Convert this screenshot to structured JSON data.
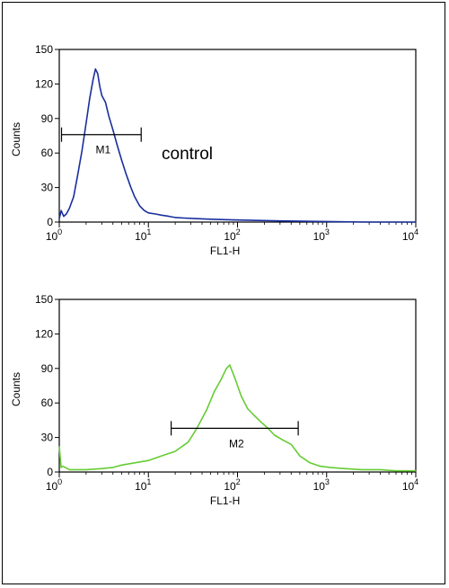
{
  "chart_data": [
    {
      "type": "line",
      "panel": "top",
      "xlabel": "FL1-H",
      "ylabel": "Counts",
      "x_scale": "log",
      "xlim": [
        1,
        10000
      ],
      "ylim": [
        0,
        150
      ],
      "y_ticks": [
        "0",
        "30",
        "60",
        "90",
        "120",
        "150"
      ],
      "x_ticks": [
        {
          "base": "10",
          "exp": "0"
        },
        {
          "base": "10",
          "exp": "1"
        },
        {
          "base": "10",
          "exp": "2"
        },
        {
          "base": "10",
          "exp": "3"
        },
        {
          "base": "10",
          "exp": "4"
        }
      ],
      "annotation": "control",
      "gate": {
        "label": "M1",
        "x_start": 1.06,
        "x_end": 8.3,
        "y": 76
      },
      "series": [
        {
          "color": "#1a2f9e",
          "x": [
            1.0,
            1.05,
            1.12,
            1.2,
            1.3,
            1.45,
            1.6,
            1.8,
            2.0,
            2.2,
            2.4,
            2.55,
            2.7,
            2.85,
            3.0,
            3.3,
            3.6,
            4.0,
            4.5,
            5.0,
            5.6,
            6.3,
            7.0,
            8.0,
            9.0,
            10.0,
            12.0,
            14.0,
            17.0,
            20.0,
            25.0,
            35.0,
            50.0,
            80.0,
            150.0,
            300.0,
            1000.0,
            3000.0,
            10000.0
          ],
          "y": [
            3,
            10,
            5,
            7,
            12,
            22,
            40,
            62,
            86,
            108,
            124,
            133,
            129,
            118,
            110,
            104,
            92,
            80,
            66,
            54,
            42,
            31,
            22,
            14,
            10,
            8,
            7,
            6,
            5,
            4,
            3.5,
            3,
            2.5,
            2,
            1.5,
            1,
            0.5,
            0,
            0
          ]
        }
      ]
    },
    {
      "type": "line",
      "panel": "bottom",
      "xlabel": "FL1-H",
      "ylabel": "Counts",
      "x_scale": "log",
      "xlim": [
        1,
        10000
      ],
      "ylim": [
        0,
        150
      ],
      "y_ticks": [
        "0",
        "30",
        "60",
        "90",
        "120",
        "150"
      ],
      "x_ticks": [
        {
          "base": "10",
          "exp": "0"
        },
        {
          "base": "10",
          "exp": "1"
        },
        {
          "base": "10",
          "exp": "2"
        },
        {
          "base": "10",
          "exp": "3"
        },
        {
          "base": "10",
          "exp": "4"
        }
      ],
      "gate": {
        "label": "M2",
        "x_start": 18,
        "x_end": 480,
        "y": 38
      },
      "series": [
        {
          "color": "#66cc33",
          "x": [
            1.0,
            1.02,
            1.05,
            1.1,
            1.3,
            1.6,
            2.0,
            3.0,
            4.0,
            5.0,
            7.0,
            10.0,
            14.0,
            20.0,
            28.0,
            35.0,
            45.0,
            55.0,
            65.0,
            75.0,
            82.0,
            95.0,
            110.0,
            130.0,
            150.0,
            180.0,
            220.0,
            260.0,
            320.0,
            400.0,
            500.0,
            650.0,
            850.0,
            1100.0,
            1600.0,
            2500.0,
            4000.0,
            6000.0,
            10000.0
          ],
          "y": [
            22,
            14,
            4,
            5,
            2,
            2,
            2,
            3,
            4,
            6,
            8,
            10,
            14,
            18,
            26,
            38,
            54,
            70,
            80,
            90,
            93,
            80,
            66,
            55,
            50,
            44,
            38,
            32,
            28,
            24,
            14,
            8,
            5,
            4,
            3,
            2,
            2,
            1,
            1
          ]
        }
      ]
    }
  ]
}
